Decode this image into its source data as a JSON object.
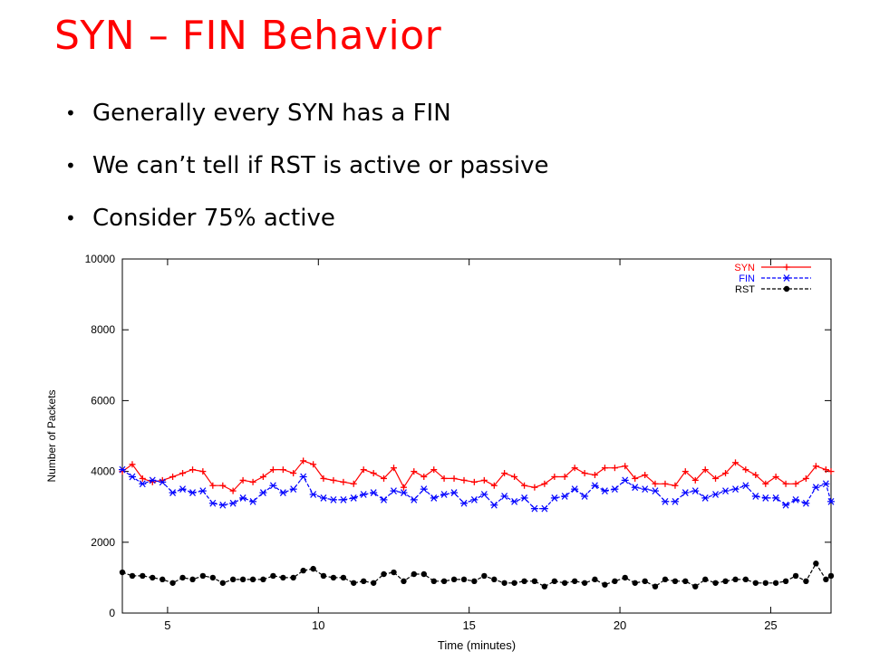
{
  "slide": {
    "title": "SYN – FIN Behavior",
    "bullets": [
      "Generally every SYN has a FIN",
      "We can’t tell if RST is active or passive",
      "Consider 75% active"
    ]
  },
  "chart_data": {
    "type": "line",
    "title": "",
    "xlabel": "Time (minutes)",
    "ylabel": "Number of Packets",
    "xlim": [
      3.5,
      27
    ],
    "ylim": [
      0,
      10000
    ],
    "xticks": [
      5,
      10,
      15,
      20,
      25
    ],
    "yticks": [
      0,
      2000,
      4000,
      6000,
      8000,
      10000
    ],
    "grid": false,
    "legend_position": "top-right",
    "x": [
      3.5,
      3.83,
      4.17,
      4.5,
      4.83,
      5.17,
      5.5,
      5.83,
      6.17,
      6.5,
      6.83,
      7.17,
      7.5,
      7.83,
      8.17,
      8.5,
      8.83,
      9.17,
      9.5,
      9.83,
      10.17,
      10.5,
      10.83,
      11.17,
      11.5,
      11.83,
      12.17,
      12.5,
      12.83,
      13.17,
      13.5,
      13.83,
      14.17,
      14.5,
      14.83,
      15.17,
      15.5,
      15.83,
      16.17,
      16.5,
      16.83,
      17.17,
      17.5,
      17.83,
      18.17,
      18.5,
      18.83,
      19.17,
      19.5,
      19.83,
      20.17,
      20.5,
      20.83,
      21.17,
      21.5,
      21.83,
      22.17,
      22.5,
      22.83,
      23.17,
      23.5,
      23.83,
      24.17,
      24.5,
      24.83,
      25.17,
      25.5,
      25.83,
      26.17,
      26.5,
      26.83,
      27
    ],
    "series": [
      {
        "name": "SYN",
        "color": "#ff0000",
        "marker": "plus",
        "dash": "solid",
        "values": [
          4000,
          4200,
          3800,
          3700,
          3750,
          3850,
          3950,
          4050,
          4000,
          3600,
          3600,
          3450,
          3750,
          3700,
          3850,
          4050,
          4050,
          3950,
          4300,
          4200,
          3800,
          3750,
          3700,
          3650,
          4050,
          3950,
          3800,
          4100,
          3550,
          4000,
          3850,
          4050,
          3800,
          3800,
          3750,
          3700,
          3750,
          3600,
          3950,
          3850,
          3600,
          3550,
          3650,
          3850,
          3850,
          4100,
          3950,
          3900,
          4100,
          4100,
          4150,
          3800,
          3900,
          3650,
          3650,
          3600,
          4000,
          3750,
          4050,
          3800,
          3950,
          4250,
          4050,
          3900,
          3650,
          3850,
          3650,
          3650,
          3800,
          4150,
          4050,
          4000
        ]
      },
      {
        "name": "FIN",
        "color": "#0000ff",
        "marker": "asterisk",
        "dash": "dashed",
        "values": [
          4050,
          3850,
          3650,
          3750,
          3700,
          3400,
          3500,
          3400,
          3450,
          3100,
          3050,
          3100,
          3250,
          3150,
          3400,
          3600,
          3400,
          3500,
          3850,
          3350,
          3250,
          3200,
          3200,
          3250,
          3350,
          3400,
          3200,
          3450,
          3400,
          3200,
          3500,
          3250,
          3350,
          3400,
          3100,
          3200,
          3350,
          3050,
          3300,
          3150,
          3250,
          2950,
          2950,
          3250,
          3300,
          3500,
          3300,
          3600,
          3450,
          3500,
          3750,
          3550,
          3500,
          3450,
          3150,
          3150,
          3400,
          3450,
          3250,
          3350,
          3450,
          3500,
          3600,
          3300,
          3250,
          3250,
          3050,
          3200,
          3100,
          3550,
          3650,
          3150
        ]
      },
      {
        "name": "RST",
        "color": "#000000",
        "marker": "circle",
        "dash": "dashed",
        "values": [
          1150,
          1050,
          1050,
          1000,
          950,
          850,
          1000,
          950,
          1050,
          1000,
          850,
          950,
          950,
          950,
          950,
          1050,
          1000,
          1000,
          1200,
          1250,
          1050,
          1000,
          1000,
          850,
          900,
          850,
          1100,
          1150,
          900,
          1100,
          1100,
          900,
          900,
          950,
          950,
          900,
          1050,
          950,
          850,
          850,
          900,
          900,
          750,
          900,
          850,
          900,
          850,
          950,
          800,
          900,
          1000,
          850,
          900,
          750,
          950,
          900,
          900,
          750,
          950,
          850,
          900,
          950,
          950,
          850,
          850,
          850,
          900,
          1050,
          900,
          1400,
          950,
          1050
        ]
      }
    ]
  }
}
